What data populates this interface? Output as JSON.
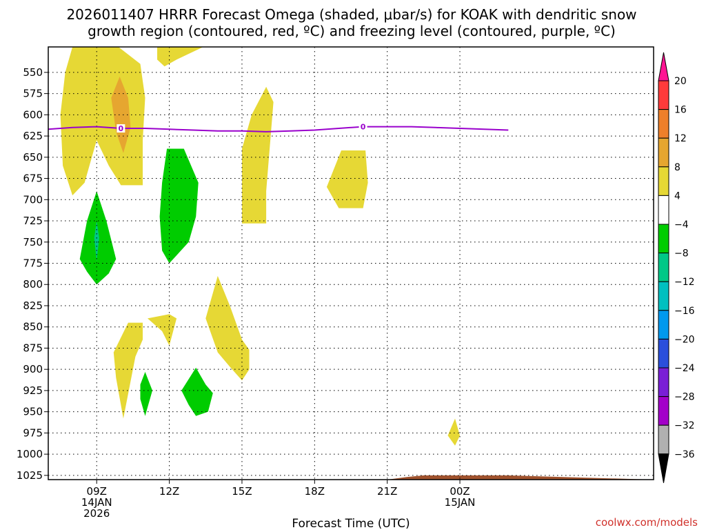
{
  "chart_data": {
    "type": "heatmap",
    "title_line1": "2026011407 HRRR Forecast Omega (shaded, μbar/s) for KOAK with dendritic snow",
    "title_line2": "growth region (contoured, red, ºC) and freezing level (contoured, purple, ºC)",
    "xlabel": "Forecast Time (UTC)",
    "xlim": [
      7,
      32
    ],
    "ylim": [
      1030,
      520
    ],
    "y_ticks": [
      550,
      575,
      600,
      625,
      650,
      675,
      700,
      725,
      750,
      775,
      800,
      825,
      850,
      875,
      900,
      925,
      950,
      975,
      1000,
      1025
    ],
    "x_ticks": [
      {
        "x": 9,
        "line1": "09Z",
        "line2": "14JAN",
        "line3": "2026"
      },
      {
        "x": 12,
        "line1": "12Z"
      },
      {
        "x": 15,
        "line1": "15Z"
      },
      {
        "x": 18,
        "line1": "18Z"
      },
      {
        "x": 21,
        "line1": "21Z"
      },
      {
        "x": 24,
        "line1": "00Z",
        "line2": "15JAN"
      }
    ],
    "colorbar": {
      "labels": [
        "20",
        "16",
        "12",
        "8",
        "4",
        "−4",
        "−8",
        "−12",
        "−16",
        "−20",
        "−24",
        "−28",
        "−32",
        "−36"
      ],
      "colors": [
        "#ff1493",
        "#ff3b3b",
        "#ee7f2a",
        "#e6a630",
        "#e6d835",
        "#ffffff",
        "#00cc00",
        "#00c887",
        "#00c0c0",
        "#0099ee",
        "#2b4fdc",
        "#7a1fd6",
        "#a300c9",
        "#b0b0b0",
        "#000000"
      ]
    },
    "regions": [
      {
        "name": "upward-motion-4-8",
        "color": "#e6d835",
        "points": [
          [
            8.0,
            520
          ],
          [
            9.9,
            520
          ],
          [
            10.8,
            540
          ],
          [
            11.0,
            580
          ],
          [
            10.9,
            630
          ],
          [
            10.9,
            683
          ],
          [
            10.0,
            683
          ],
          [
            9.5,
            660
          ],
          [
            9.0,
            630
          ],
          [
            8.8,
            650
          ],
          [
            8.5,
            680
          ],
          [
            8.0,
            695
          ],
          [
            7.6,
            660
          ],
          [
            7.5,
            600
          ],
          [
            7.7,
            550
          ]
        ]
      },
      {
        "name": "upward-motion-8-12",
        "color": "#e6a630",
        "points": [
          [
            9.95,
            555
          ],
          [
            10.3,
            580
          ],
          [
            10.4,
            615
          ],
          [
            10.1,
            645
          ],
          [
            9.8,
            620
          ],
          [
            9.6,
            580
          ]
        ]
      },
      {
        "name": "upward-motion-4-8",
        "color": "#e6d835",
        "points": [
          [
            11.5,
            520
          ],
          [
            13.4,
            520
          ],
          [
            12.3,
            535
          ],
          [
            11.8,
            543
          ],
          [
            11.5,
            535
          ]
        ]
      },
      {
        "name": "upward-motion-4-8",
        "color": "#e6d835",
        "points": [
          [
            16.0,
            567
          ],
          [
            16.3,
            585
          ],
          [
            16.2,
            620
          ],
          [
            16.0,
            690
          ],
          [
            16.0,
            728
          ],
          [
            15.0,
            728
          ],
          [
            15.0,
            640
          ],
          [
            15.4,
            600
          ]
        ]
      },
      {
        "name": "upward-motion-4-8",
        "color": "#e6d835",
        "points": [
          [
            19.1,
            642
          ],
          [
            20.1,
            642
          ],
          [
            20.2,
            680
          ],
          [
            20.0,
            710
          ],
          [
            19.0,
            710
          ],
          [
            18.5,
            685
          ]
        ]
      },
      {
        "name": "upward-motion-4-8",
        "color": "#e6d835",
        "points": [
          [
            10.3,
            845
          ],
          [
            10.9,
            845
          ],
          [
            10.9,
            865
          ],
          [
            10.6,
            885
          ],
          [
            10.1,
            958
          ],
          [
            9.8,
            910
          ],
          [
            9.7,
            880
          ]
        ]
      },
      {
        "name": "upward-motion-4-8",
        "color": "#e6d835",
        "points": [
          [
            11.1,
            840
          ],
          [
            12.0,
            835
          ],
          [
            12.3,
            840
          ],
          [
            12.0,
            872
          ],
          [
            11.7,
            855
          ]
        ]
      },
      {
        "name": "upward-motion-4-8",
        "color": "#e6d835",
        "points": [
          [
            14.0,
            790
          ],
          [
            14.5,
            825
          ],
          [
            15.0,
            865
          ],
          [
            15.3,
            877
          ],
          [
            15.3,
            900
          ],
          [
            15.0,
            913
          ],
          [
            14.5,
            897
          ],
          [
            14.0,
            880
          ],
          [
            13.5,
            840
          ]
        ]
      },
      {
        "name": "upward-motion-4-8",
        "color": "#e6d835",
        "points": [
          [
            23.8,
            958
          ],
          [
            24.0,
            978
          ],
          [
            23.8,
            990
          ],
          [
            23.5,
            978
          ]
        ]
      },
      {
        "name": "downward-motion-4-8",
        "color": "#00cc00",
        "points": [
          [
            11.9,
            640
          ],
          [
            12.6,
            640
          ],
          [
            13.2,
            680
          ],
          [
            13.1,
            720
          ],
          [
            12.8,
            750
          ],
          [
            12.0,
            775
          ],
          [
            11.7,
            760
          ],
          [
            11.6,
            720
          ],
          [
            11.7,
            680
          ]
        ]
      },
      {
        "name": "downward-motion-4-8",
        "color": "#00cc00",
        "points": [
          [
            9.0,
            690
          ],
          [
            9.4,
            725
          ],
          [
            9.8,
            770
          ],
          [
            9.5,
            787
          ],
          [
            9.0,
            800
          ],
          [
            8.6,
            785
          ],
          [
            8.3,
            770
          ],
          [
            8.6,
            725
          ]
        ]
      },
      {
        "name": "downward-motion-8-12",
        "color": "#00c887",
        "points": [
          [
            9.0,
            725
          ],
          [
            9.1,
            745
          ],
          [
            9.0,
            773
          ],
          [
            8.9,
            745
          ]
        ]
      },
      {
        "name": "downward-motion-4-8",
        "color": "#00cc00",
        "points": [
          [
            11.0,
            903
          ],
          [
            11.3,
            925
          ],
          [
            11.0,
            955
          ],
          [
            10.8,
            935
          ],
          [
            10.8,
            918
          ]
        ]
      },
      {
        "name": "downward-motion-4-8",
        "color": "#00cc00",
        "points": [
          [
            13.1,
            898
          ],
          [
            13.5,
            918
          ],
          [
            13.8,
            928
          ],
          [
            13.6,
            950
          ],
          [
            13.1,
            955
          ],
          [
            12.8,
            942
          ],
          [
            12.5,
            925
          ]
        ]
      }
    ],
    "freezing_level": {
      "label": "0",
      "label_x": [
        10.0,
        20.0
      ],
      "x": [
        7.0,
        8.0,
        9.0,
        10.0,
        11.0,
        12.0,
        13.0,
        14.0,
        15.0,
        16.0,
        17.0,
        18.0,
        19.0,
        20.0,
        21.0,
        22.0,
        23.0,
        24.0,
        25.0,
        26.0
      ],
      "y": [
        617,
        615,
        614,
        616,
        616,
        617,
        618,
        619,
        619,
        620,
        619,
        618,
        616,
        614,
        614,
        614,
        615,
        616,
        617,
        618
      ]
    },
    "ground_fill": {
      "color": "#a0522d",
      "x": [
        7.0,
        15.0,
        18.0,
        21.0,
        21.8,
        22.5,
        26.0
      ],
      "y": [
        1030,
        1030,
        1030,
        1030,
        1027,
        1025,
        1025
      ]
    }
  },
  "credit": "coolwx.com/models"
}
